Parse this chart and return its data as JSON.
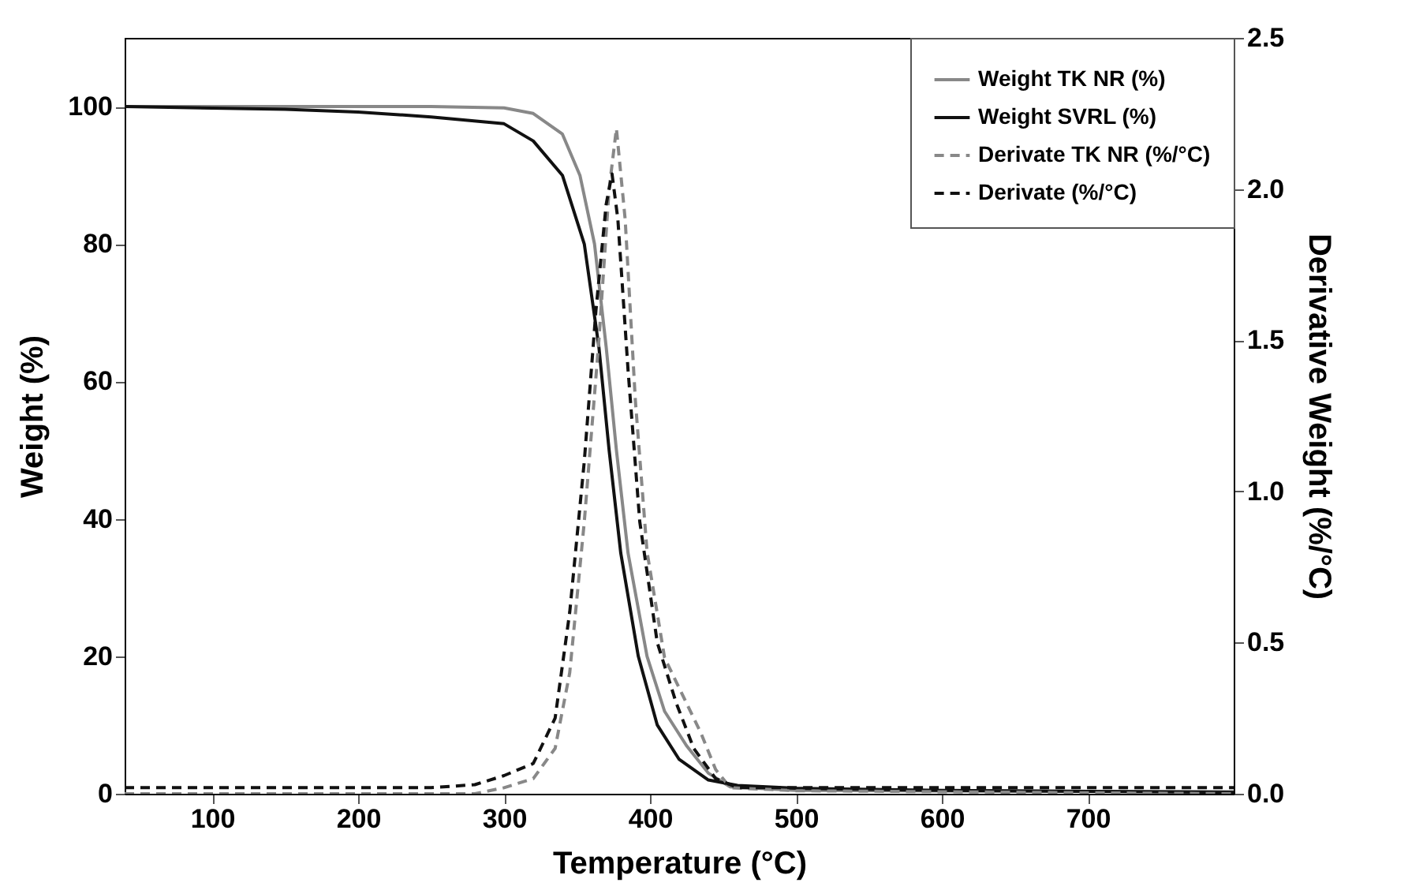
{
  "chart_data": {
    "type": "line",
    "xlabel": "Temperature (°C)",
    "ylabel": "Weight (%)",
    "y2label": "Derivative Weight (%/°C)",
    "xlim": [
      40,
      800
    ],
    "xticks": [
      100,
      200,
      300,
      400,
      500,
      600,
      700
    ],
    "ylim": [
      0,
      110
    ],
    "yticks": [
      0,
      20,
      40,
      60,
      80,
      100
    ],
    "y2lim": [
      0,
      2.5
    ],
    "y2ticks": [
      {
        "value": 0,
        "label": "0.0"
      },
      {
        "value": 0.5,
        "label": "0.5"
      },
      {
        "value": 1,
        "label": "1.0"
      },
      {
        "value": 1.5,
        "label": "1.5"
      },
      {
        "value": 2,
        "label": "2.0"
      },
      {
        "value": 2.5,
        "label": "2.5"
      }
    ],
    "grid": false,
    "legend": "top right",
    "marker": "none",
    "series": [
      {
        "name": "Weight TK NR (%)",
        "color": "#888888",
        "line_style": "solid",
        "x": [
          40,
          150,
          250,
          300,
          320,
          340,
          352,
          362,
          370,
          377,
          385,
          398,
          410,
          425,
          440,
          455,
          500,
          600,
          800
        ],
        "values": [
          100,
          100,
          100,
          99.8,
          99,
          96,
          90,
          80,
          65,
          50,
          35,
          20,
          12,
          7,
          3,
          1,
          0.5,
          0.4,
          0.3
        ]
      },
      {
        "name": "Weight SVRL (%)",
        "color": "#111111",
        "line_style": "solid",
        "x": [
          40,
          150,
          200,
          250,
          300,
          320,
          340,
          355,
          365,
          372,
          380,
          392,
          405,
          420,
          440,
          460,
          500,
          600,
          800
        ],
        "values": [
          100,
          99.6,
          99.2,
          98.5,
          97.5,
          95,
          90,
          80,
          65,
          50,
          35,
          20,
          10,
          5,
          2,
          1.2,
          0.8,
          0.5,
          0.2
        ]
      },
      {
        "name": "Derivate TK NR (%/°C)",
        "color": "#888888",
        "line_style": "dashed",
        "axis": "y2",
        "x": [
          40,
          280,
          300,
          320,
          335,
          345,
          355,
          365,
          372,
          377,
          383,
          390,
          398,
          410,
          425,
          435,
          445,
          455,
          500,
          800
        ],
        "values": [
          0,
          0,
          0.02,
          0.05,
          0.15,
          0.4,
          0.9,
          1.5,
          2.0,
          2.2,
          1.9,
          1.3,
          0.8,
          0.45,
          0.3,
          0.2,
          0.08,
          0.02,
          0.01,
          0
        ]
      },
      {
        "name": "Derivate (%/°C)",
        "color": "#111111",
        "line_style": "dashed",
        "axis": "y2",
        "x": [
          40,
          250,
          280,
          300,
          320,
          335,
          345,
          355,
          363,
          370,
          374,
          378,
          385,
          393,
          405,
          418,
          430,
          445,
          460,
          800
        ],
        "values": [
          0.02,
          0.02,
          0.03,
          0.06,
          0.1,
          0.25,
          0.6,
          1.1,
          1.6,
          1.95,
          2.05,
          1.9,
          1.4,
          0.9,
          0.5,
          0.3,
          0.15,
          0.05,
          0.02,
          0.02
        ]
      }
    ]
  }
}
